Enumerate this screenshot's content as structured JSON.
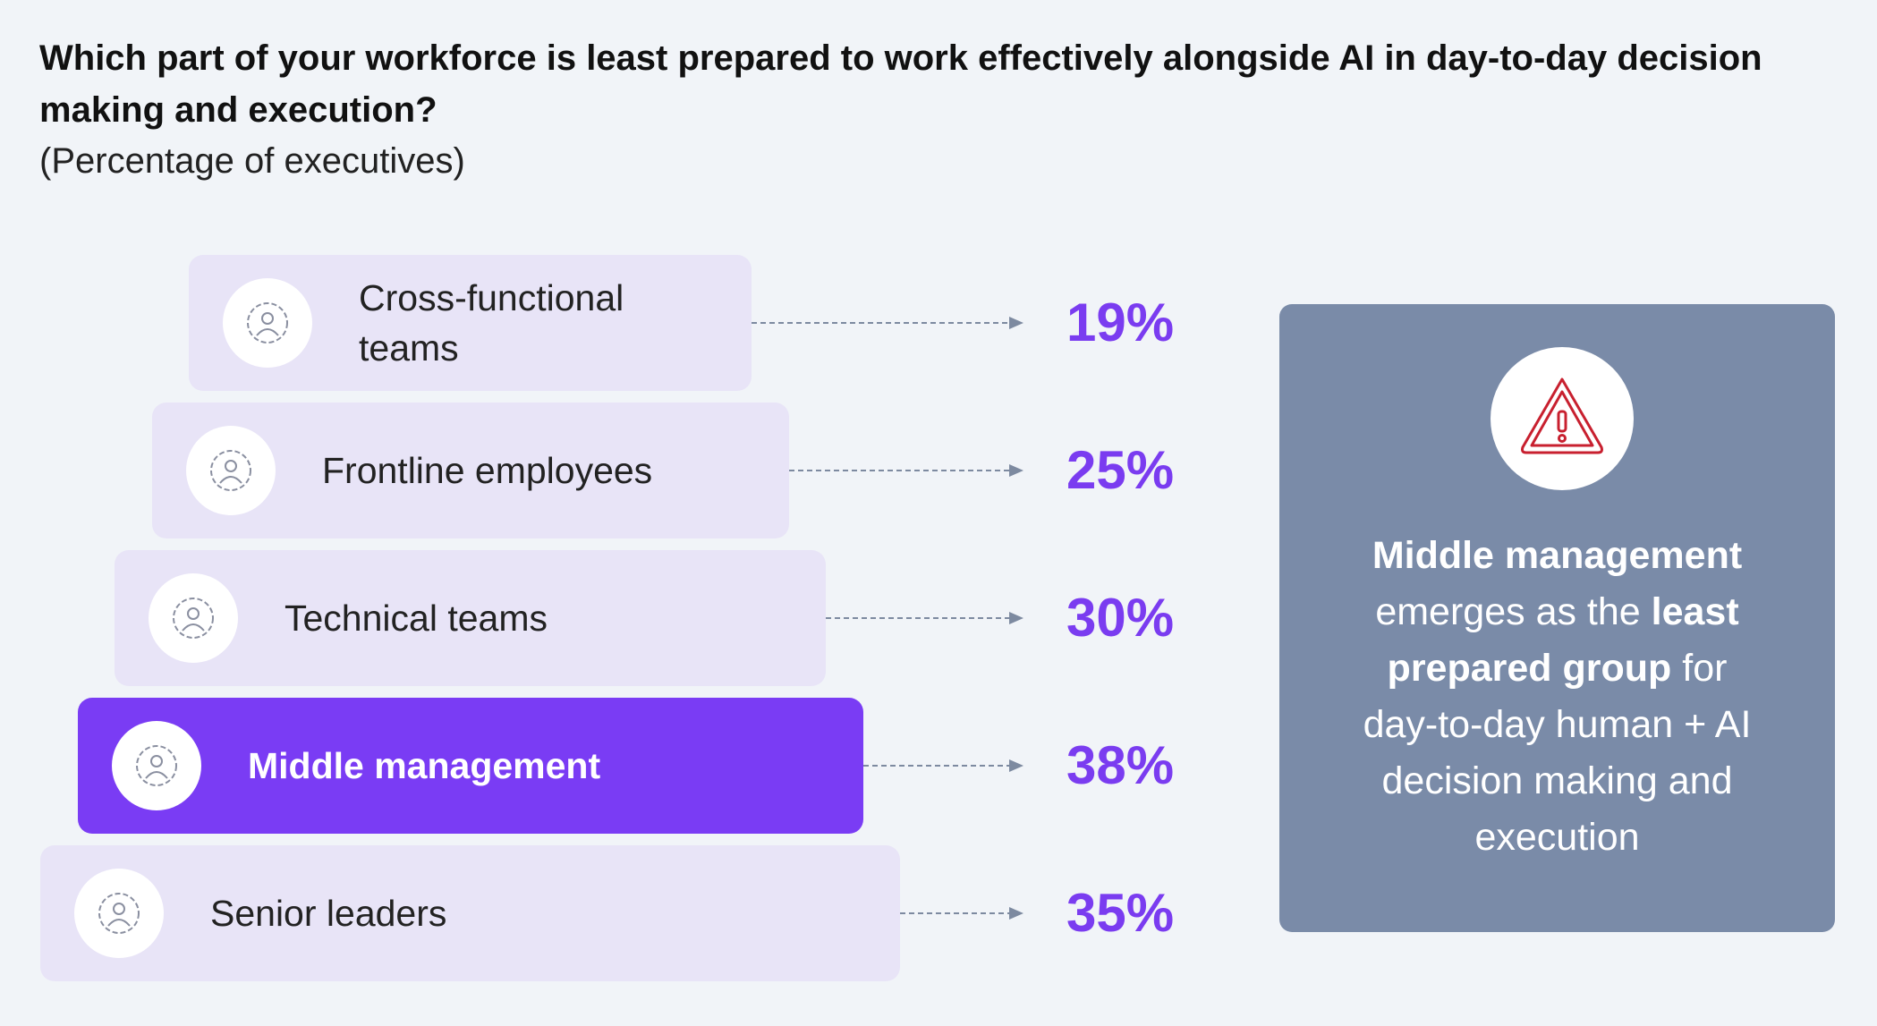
{
  "header": {
    "title": "Which part of your workforce is least prepared to work effectively alongside AI in day-to-day decision making and execution?",
    "subtitle": "(Percentage of executives)"
  },
  "rows": [
    {
      "label": "Cross-functional teams",
      "value": "19%",
      "highlight": false
    },
    {
      "label": "Frontline employees",
      "value": "25%",
      "highlight": false
    },
    {
      "label": "Technical teams",
      "value": "30%",
      "highlight": false
    },
    {
      "label": "Middle management",
      "value": "38%",
      "highlight": true
    },
    {
      "label": "Senior leaders",
      "value": "35%",
      "highlight": false
    }
  ],
  "callout": {
    "lines": [
      [
        {
          "text": "Middle management",
          "bold": true
        }
      ],
      [
        {
          "text": "emerges as the ",
          "bold": false
        },
        {
          "text": "least",
          "bold": true
        }
      ],
      [
        {
          "text": "prepared group",
          "bold": true
        },
        {
          "text": " for",
          "bold": false
        }
      ],
      [
        {
          "text": "day-to-day human + AI",
          "bold": false
        }
      ],
      [
        {
          "text": "decision making and",
          "bold": false
        }
      ],
      [
        {
          "text": "execution",
          "bold": false
        }
      ]
    ]
  }
}
